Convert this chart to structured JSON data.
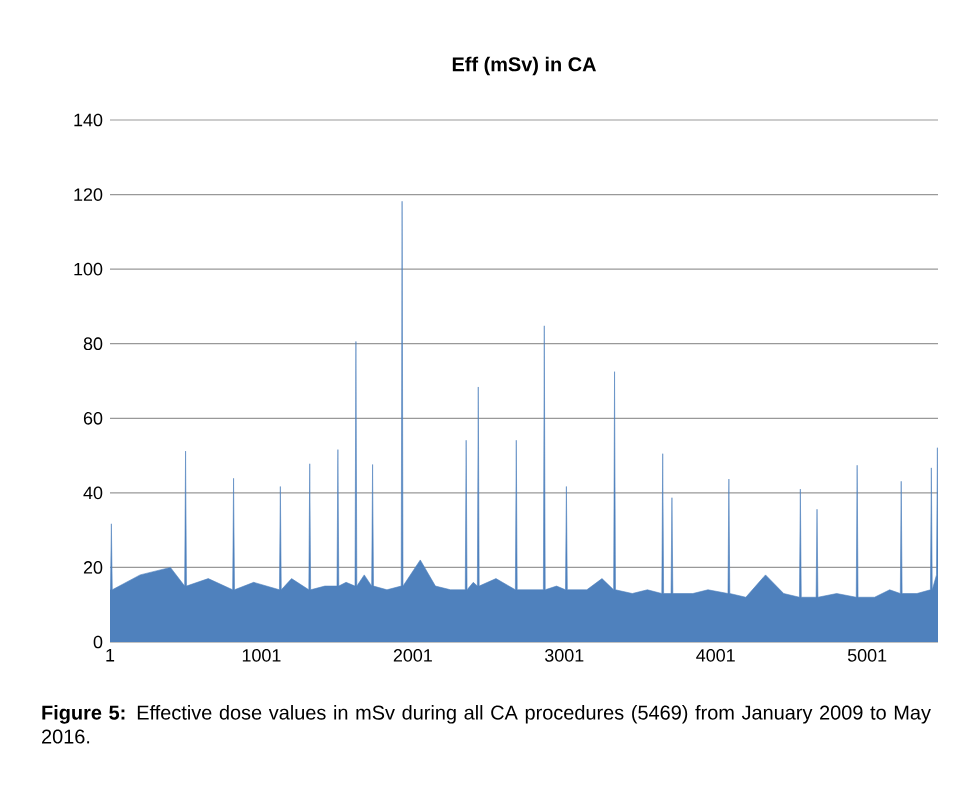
{
  "chart_data": {
    "type": "area",
    "title": "Eff (mSv) in CA",
    "x": [
      1,
      4,
      10,
      16,
      200,
      400,
      494,
      500,
      506,
      650,
      811,
      817,
      823,
      950,
      1120,
      1126,
      1132,
      1200,
      1314,
      1320,
      1326,
      1420,
      1500,
      1506,
      1512,
      1560,
      1619,
      1625,
      1631,
      1680,
      1729,
      1735,
      1741,
      1830,
      1924,
      1930,
      1936,
      2050,
      2150,
      2250,
      2347,
      2353,
      2359,
      2400,
      2427,
      2433,
      2439,
      2550,
      2678,
      2684,
      2690,
      2780,
      2863,
      2869,
      2875,
      2950,
      3009,
      3015,
      3021,
      3150,
      3250,
      3327,
      3333,
      3339,
      3450,
      3550,
      3645,
      3651,
      3657,
      3706,
      3712,
      3718,
      3850,
      3950,
      4082,
      4088,
      4094,
      4200,
      4330,
      4450,
      4554,
      4560,
      4566,
      4620,
      4664,
      4670,
      4676,
      4800,
      4929,
      4935,
      4941,
      5050,
      5150,
      5220,
      5226,
      5232,
      5330,
      5419,
      5425,
      5431,
      5459,
      5465,
      5469
    ],
    "values": [
      14,
      14,
      31.7,
      14,
      18,
      20,
      15,
      51.2,
      15,
      17,
      14,
      43.9,
      14,
      16,
      14,
      41.7,
      14,
      17,
      14,
      47.8,
      14,
      15,
      15,
      51.6,
      15,
      16,
      15,
      80.6,
      15,
      18,
      15,
      47.6,
      15,
      14,
      15,
      118.2,
      15,
      22,
      15,
      14,
      14,
      54.1,
      14,
      16,
      15,
      68.4,
      15,
      17,
      14,
      54.1,
      14,
      14,
      14,
      84.8,
      14,
      15,
      14,
      41.7,
      14,
      14,
      17,
      14,
      72.5,
      14,
      13,
      14,
      13,
      50.5,
      13,
      13,
      38.7,
      13,
      13,
      14,
      13,
      43.7,
      13,
      12,
      18,
      13,
      12,
      41,
      12,
      12,
      12,
      35.6,
      12,
      13,
      12,
      47.4,
      12,
      12,
      14,
      13,
      43.1,
      13,
      13,
      14,
      46.7,
      14,
      18,
      52.1,
      24.7
    ],
    "color": "#4f81bd",
    "xlim": [
      1,
      5469
    ],
    "ylim": [
      0,
      140
    ],
    "xticks": [
      1,
      1001,
      2001,
      3001,
      4001,
      5001
    ],
    "yticks": [
      0,
      20,
      40,
      60,
      80,
      100,
      120,
      140
    ],
    "grid": "y",
    "annotations": [
      "**Figure 5:** Effective dose values in mSv during all CA procedures (5469) from January 2009 to May 2016."
    ]
  }
}
